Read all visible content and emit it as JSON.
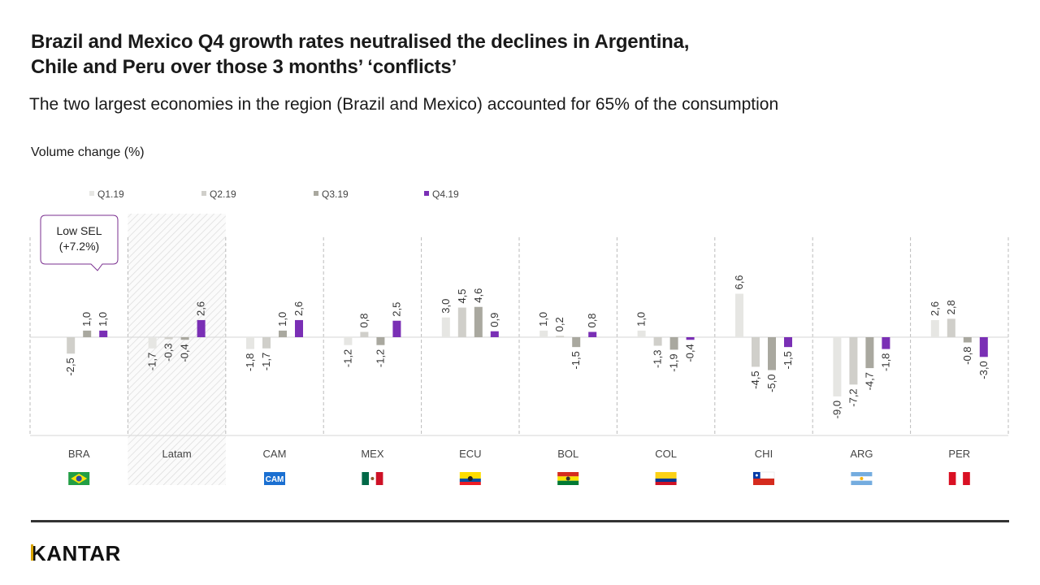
{
  "title_lines": [
    "Brazil and Mexico Q4 growth rates neutralised the declines in Argentina,",
    "Chile and Peru over those 3 months’ ‘conflicts’"
  ],
  "subtitle": "The two largest economies in the region (Brazil and Mexico)  accounted for 65% of the consumption",
  "brand": "KANTAR",
  "colors": {
    "q1": "#e6e6e3",
    "q2": "#d0cfca",
    "q3": "#a9a89f",
    "q4": "#7a2fb5",
    "callout_border": "#7a2f8f",
    "divider": "#bbbbbb"
  },
  "chart_data": {
    "type": "bar",
    "ylabel": "Volume change (%)",
    "ylim": [
      -9.5,
      7.5
    ],
    "categories": [
      "BRA",
      "Latam",
      "CAM",
      "MEX",
      "ECU",
      "BOL",
      "COL",
      "CHI",
      "ARG",
      "PER"
    ],
    "highlight_category": "Latam",
    "series": [
      {
        "name": "Q1.19",
        "values": [
          null,
          -1.7,
          -1.8,
          -1.2,
          3.0,
          1.0,
          1.0,
          6.6,
          -9.0,
          2.6
        ]
      },
      {
        "name": "Q2.19",
        "values": [
          -2.5,
          -0.3,
          -1.7,
          0.8,
          4.5,
          0.2,
          -1.3,
          -4.5,
          -7.2,
          2.8
        ]
      },
      {
        "name": "Q3.19",
        "values": [
          1.0,
          -0.4,
          1.0,
          -1.2,
          4.6,
          -1.5,
          -1.9,
          -5.0,
          -4.7,
          -0.8
        ]
      },
      {
        "name": "Q4.19",
        "values": [
          1.0,
          2.6,
          2.6,
          2.5,
          0.9,
          0.8,
          -0.4,
          -1.5,
          -1.8,
          -3.0
        ]
      }
    ],
    "data_labels": [
      [
        "",
        "-2,5",
        "1,0",
        "1,0"
      ],
      [
        "-1,7",
        "-0,3",
        "-0,4",
        "2,6"
      ],
      [
        "-1,8",
        "-1,7",
        "1,0",
        "2,6"
      ],
      [
        "-1,2",
        "0,8",
        "-1,2",
        "2,5"
      ],
      [
        "3,0",
        "4,5",
        "4,6",
        "0,9"
      ],
      [
        "1,0",
        "0,2",
        "-1,5",
        "0,8"
      ],
      [
        "1,0",
        "-1,3",
        "-1,9",
        "-0,4"
      ],
      [
        "6,6",
        "-4,5",
        "-5,0",
        "-1,5"
      ],
      [
        "-9,0",
        "-7,2",
        "-4,7",
        "-1,8"
      ],
      [
        "2,6",
        "2,8",
        "-0,8",
        "-3,0"
      ]
    ],
    "annotation": {
      "category": "BRA",
      "lines": [
        "Low SEL",
        "(+7.2%)"
      ]
    },
    "legend_position": "top"
  },
  "flags": [
    {
      "country": "BRA",
      "name": "brazil-flag-icon"
    },
    {
      "country": "Latam",
      "name": ""
    },
    {
      "country": "CAM",
      "name": "cam-flag-icon",
      "text": "CAM"
    },
    {
      "country": "MEX",
      "name": "mexico-flag-icon"
    },
    {
      "country": "ECU",
      "name": "ecuador-flag-icon"
    },
    {
      "country": "BOL",
      "name": "bolivia-flag-icon"
    },
    {
      "country": "COL",
      "name": "colombia-flag-icon"
    },
    {
      "country": "CHI",
      "name": "chile-flag-icon"
    },
    {
      "country": "ARG",
      "name": "argentina-flag-icon"
    },
    {
      "country": "PER",
      "name": "peru-flag-icon"
    }
  ]
}
